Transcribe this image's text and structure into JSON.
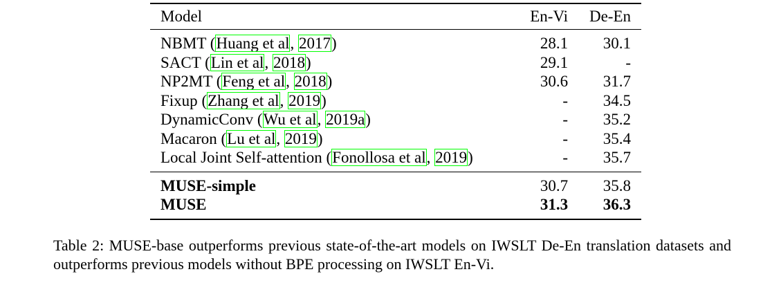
{
  "table": {
    "headers": {
      "model": "Model",
      "en_vi": "En-Vi",
      "de_en": "De-En"
    },
    "baselines": [
      {
        "name": "NBMT",
        "cite_authors": "Huang et al",
        "cite_year": "2017",
        "en_vi": "28.1",
        "de_en": "30.1"
      },
      {
        "name": "SACT",
        "cite_authors": "Lin et al",
        "cite_year": "2018",
        "en_vi": "29.1",
        "de_en": "-"
      },
      {
        "name": "NP2MT",
        "cite_authors": "Feng et al",
        "cite_year": "2018",
        "en_vi": "30.6",
        "de_en": "31.7"
      },
      {
        "name": "Fixup",
        "cite_authors": "Zhang et al",
        "cite_year": "2019",
        "en_vi": "-",
        "de_en": "34.5"
      },
      {
        "name": "DynamicConv",
        "cite_authors": "Wu et al",
        "cite_year": "2019a",
        "en_vi": "-",
        "de_en": "35.2"
      },
      {
        "name": "Macaron",
        "cite_authors": "Lu et al",
        "cite_year": "2019",
        "en_vi": "-",
        "de_en": "35.4"
      },
      {
        "name": "Local Joint Self-attention",
        "cite_authors": "Fonollosa et al",
        "cite_year": "2019",
        "en_vi": "-",
        "de_en": "35.7"
      }
    ],
    "ours": [
      {
        "name": "MUSE-simple",
        "en_vi": "30.7",
        "de_en": "35.8",
        "bold_scores": false
      },
      {
        "name": "MUSE",
        "en_vi": "31.3",
        "de_en": "36.3",
        "bold_scores": true
      }
    ]
  },
  "caption": "Table 2: MUSE-base outperforms previous state-of-the-art models on IWSLT De-En translation datasets and outperforms previous models without BPE processing on IWSLT En-Vi."
}
